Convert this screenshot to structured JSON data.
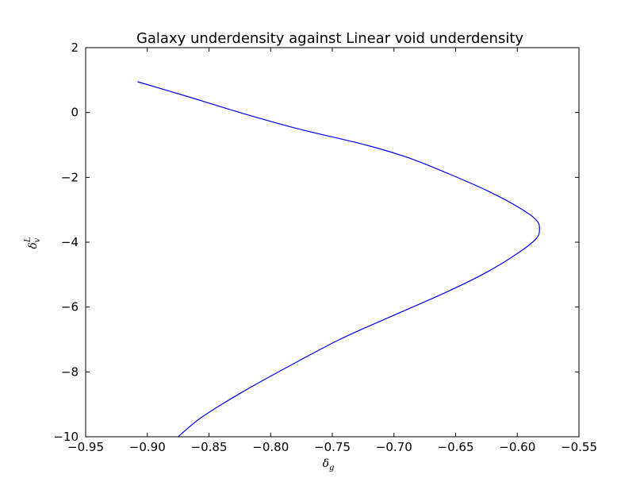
{
  "chart_data": {
    "type": "line",
    "title": "Galaxy underdensity against Linear void underdensity",
    "xlabel": {
      "symbol": "δ",
      "subscript": "g"
    },
    "ylabel": {
      "symbol": "δ",
      "subscript": "v",
      "superscript": "L"
    },
    "xlim": [
      -0.95,
      -0.55
    ],
    "ylim": [
      -10,
      2
    ],
    "xticks": [
      -0.95,
      -0.9,
      -0.85,
      -0.8,
      -0.75,
      -0.7,
      -0.65,
      -0.6,
      -0.55
    ],
    "xtick_labels": [
      "−0.95",
      "−0.90",
      "−0.85",
      "−0.80",
      "−0.75",
      "−0.70",
      "−0.65",
      "−0.60",
      "−0.55"
    ],
    "yticks": [
      2,
      0,
      -2,
      -4,
      -6,
      -8,
      -10
    ],
    "ytick_labels": [
      "2",
      "0",
      "−2",
      "−4",
      "−6",
      "−8",
      "−10"
    ],
    "grid": false,
    "series": [
      {
        "color": "#0000ff",
        "x": [
          -0.908,
          -0.868,
          -0.825,
          -0.778,
          -0.723,
          -0.688,
          -0.655,
          -0.625,
          -0.6,
          -0.585,
          -0.582,
          -0.585,
          -0.6,
          -0.626,
          -0.661,
          -0.703,
          -0.744,
          -0.784,
          -0.822,
          -0.856,
          -0.875
        ],
        "y": [
          0.95,
          0.5,
          0.0,
          -0.5,
          -1.0,
          -1.4,
          -1.9,
          -2.4,
          -2.9,
          -3.3,
          -3.6,
          -3.9,
          -4.35,
          -4.95,
          -5.6,
          -6.3,
          -7.0,
          -7.8,
          -8.6,
          -9.4,
          -10.0
        ]
      }
    ]
  }
}
